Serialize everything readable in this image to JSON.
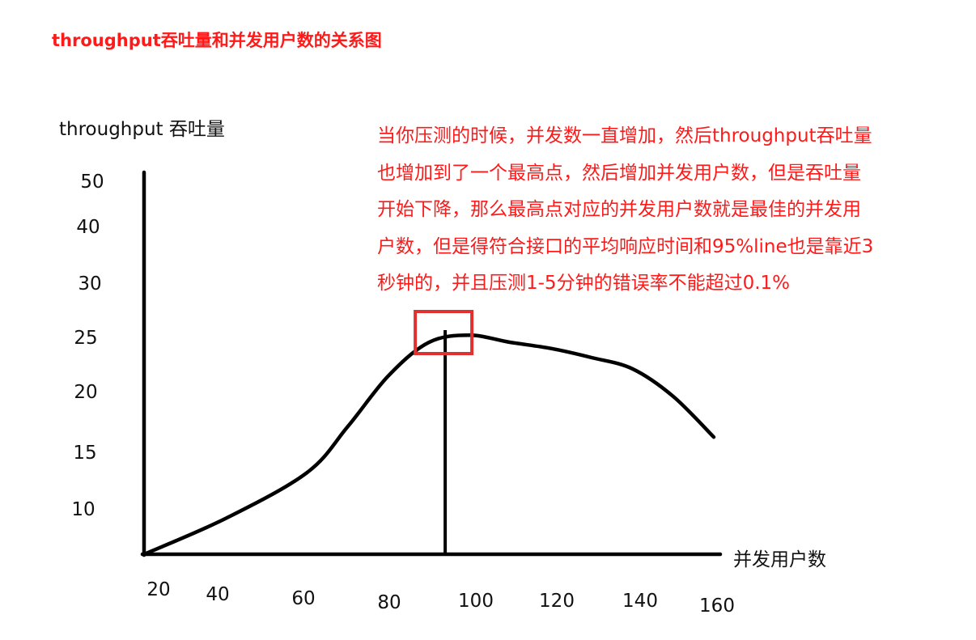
{
  "header": {
    "title": "throughput吞吐量和并发用户数的关系图"
  },
  "annotation": {
    "lines": [
      "当你压测的时候，并发数一直增加，然后throughput吞吐量",
      "也增加到了一个最高点，然后增加并发用户数，但是吞吐量",
      "开始下降，那么最高点对应的并发用户数就是最佳的并发用",
      "户数，但是得符合接口的平均响应时间和95%line也是靠近3",
      "秒钟的，并且压测1-5分钟的错误率不能超过0.1%"
    ]
  },
  "colors": {
    "axis": "#000000",
    "curve": "#000000",
    "highlight_box": "#e03030",
    "text_red": "#ff1a1a"
  },
  "chart_data": {
    "type": "line",
    "title": "throughput吞吐量和并发用户数的关系图",
    "xlabel": "并发用户数",
    "ylabel": "throughput 吞吐量",
    "x_ticks": [
      "20",
      "40",
      "60",
      "80",
      "100",
      "120",
      "140",
      "160"
    ],
    "y_ticks": [
      "10",
      "15",
      "20",
      "25",
      "30",
      "40",
      "50"
    ],
    "grid": false,
    "legend": "none",
    "series": [
      {
        "x": [
          20,
          40,
          60,
          70,
          80,
          90,
          100,
          110,
          120,
          130,
          140,
          150,
          160
        ],
        "y": [
          5,
          8.5,
          13,
          17.5,
          22.5,
          25.8,
          26.5,
          25.8,
          25.2,
          24.3,
          23.2,
          20.5,
          16.5
        ]
      }
    ],
    "peak": {
      "x": 94,
      "y": 27
    }
  }
}
